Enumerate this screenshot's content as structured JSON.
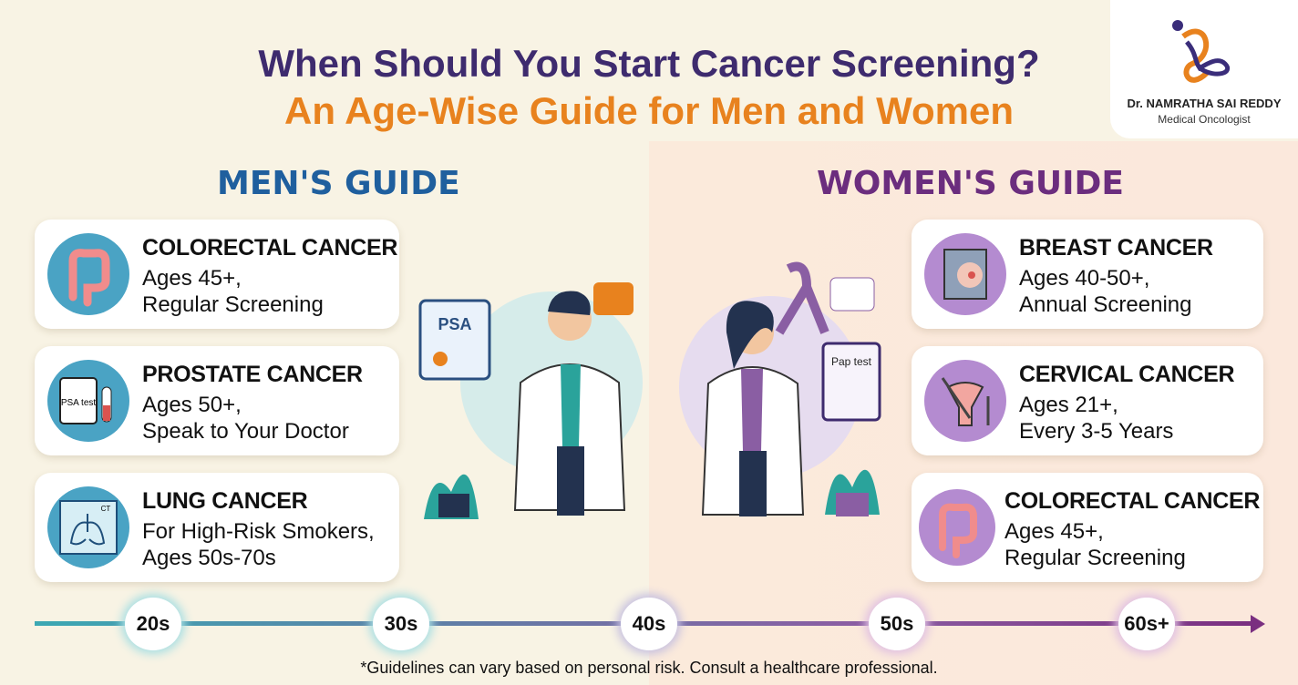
{
  "title": {
    "line1": "When Should You Start Cancer Screening?",
    "line2": "An Age-Wise Guide for Men and Women"
  },
  "logo": {
    "name": "Dr. NAMRATHA SAI REDDY",
    "role": "Medical Oncologist"
  },
  "men": {
    "heading": "MEN'S GUIDE",
    "cards": [
      {
        "title": "COLORECTAL CANCER",
        "line1": "Ages 45+,",
        "line2": "Regular Screening",
        "icon": "colon-icon"
      },
      {
        "title": "PROSTATE CANCER",
        "line1": "Ages 50+,",
        "line2": "Speak to Your Doctor",
        "icon": "psa-test-icon",
        "icon_text": "PSA test"
      },
      {
        "title": "LUNG CANCER",
        "line1": "For High-Risk Smokers,",
        "line2": "Ages 50s-70s",
        "icon": "lung-ct-icon",
        "icon_text": "CT"
      }
    ]
  },
  "women": {
    "heading": "WOMEN'S GUIDE",
    "cards": [
      {
        "title": "BREAST CANCER",
        "line1": "Ages 40-50+,",
        "line2": "Annual Screening",
        "icon": "mammogram-icon"
      },
      {
        "title": "CERVICAL CANCER",
        "line1": "Ages 21+,",
        "line2": "Every 3-5 Years",
        "icon": "cervix-icon"
      },
      {
        "title": "COLORECTAL CANCER",
        "line1": "Ages 45+,",
        "line2": "Regular Screening",
        "icon": "colon-icon"
      }
    ]
  },
  "illustrations": {
    "male_board": "PSA",
    "female_board": "Pap test"
  },
  "timeline": [
    "20s",
    "30s",
    "40s",
    "50s",
    "60s+"
  ],
  "footnote": "*Guidelines can vary based on personal risk. Consult a healthcare professional.",
  "colors": {
    "title": "#3e2b6e",
    "accent": "#e8821e",
    "men": "#1f5f9e",
    "women": "#6b2d7e",
    "men_icon": "#4aa3c4",
    "women_icon": "#b48bd0"
  }
}
